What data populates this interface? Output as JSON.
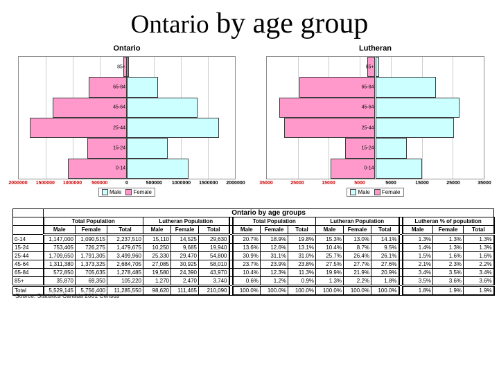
{
  "slide_title": {
    "part1": "Ontario",
    "part2": " by age group"
  },
  "source_note": "Source: Statistics Canada 2001 Census",
  "colors": {
    "male": "#CCFFFF",
    "female": "#FF99CC",
    "negative_tick": "#CC0000",
    "positive_tick": "#000000",
    "gridline": "#CCCCCC"
  },
  "chart_data": [
    {
      "type": "bar",
      "subtype": "population_pyramid",
      "title": "Ontario",
      "categories": [
        "85+",
        "65-84",
        "45-64",
        "25-44",
        "15-24",
        "0-14"
      ],
      "series": [
        {
          "name": "Male",
          "side": "right",
          "values": [
            35870,
            572850,
            1311380,
            1709650,
            753405,
            1147000
          ]
        },
        {
          "name": "Female",
          "side": "left",
          "values": [
            69350,
            705635,
            1373325,
            1791305,
            726275,
            1090515
          ]
        }
      ],
      "xlim": [
        -2000000,
        2000000
      ],
      "xticks": [
        {
          "value": -2000000,
          "label": "2000000",
          "red": true
        },
        {
          "value": -1500000,
          "label": "1500000",
          "red": true
        },
        {
          "value": -1000000,
          "label": "1000000",
          "red": true
        },
        {
          "value": -500000,
          "label": "500000",
          "red": true
        },
        {
          "value": 0,
          "label": "0",
          "red": false
        },
        {
          "value": 500000,
          "label": "500000",
          "red": false
        },
        {
          "value": 1000000,
          "label": "1000000",
          "red": false
        },
        {
          "value": 1500000,
          "label": "1500000",
          "red": false
        },
        {
          "value": 2000000,
          "label": "2000000",
          "red": false
        }
      ],
      "legend": [
        "Male",
        "Female"
      ],
      "legend_position": "bottom",
      "grid": true
    },
    {
      "type": "bar",
      "subtype": "population_pyramid",
      "title": "Lutheran",
      "categories": [
        "85+",
        "65-84",
        "45-64",
        "25-44",
        "15-24",
        "0-14"
      ],
      "series": [
        {
          "name": "Male",
          "side": "right",
          "values": [
            1270,
            19580,
            27085,
            25330,
            10250,
            15110
          ]
        },
        {
          "name": "Female",
          "side": "left",
          "values": [
            2470,
            24390,
            30925,
            29470,
            9685,
            14525
          ]
        }
      ],
      "xlim": [
        -35000,
        35000
      ],
      "xticks": [
        {
          "value": -35000,
          "label": "35000",
          "red": true
        },
        {
          "value": -25000,
          "label": "25000",
          "red": true
        },
        {
          "value": -15000,
          "label": "15000",
          "red": true
        },
        {
          "value": -5000,
          "label": "5000",
          "red": true
        },
        {
          "value": 0,
          "label": "",
          "red": false
        },
        {
          "value": 5000,
          "label": "5000",
          "red": false
        },
        {
          "value": 15000,
          "label": "15000",
          "red": false
        },
        {
          "value": 25000,
          "label": "25000",
          "red": false
        },
        {
          "value": 35000,
          "label": "35000",
          "red": false
        }
      ],
      "legend": [
        "Male",
        "Female"
      ],
      "legend_position": "bottom",
      "grid": true
    }
  ],
  "table": {
    "title": "Ontario by age groups",
    "row_labels": [
      "0-14",
      "15-24",
      "25-44",
      "45-64",
      "65-84",
      "85+",
      "Total"
    ],
    "groups": [
      {
        "label": "Total Population",
        "cols": [
          "Male",
          "Female",
          "Total"
        ],
        "rows": [
          [
            "1,147,000",
            "1,090,515",
            "2,237,510"
          ],
          [
            "753,405",
            "726,275",
            "1,479,675"
          ],
          [
            "1,709,650",
            "1,791,305",
            "3,499,960"
          ],
          [
            "1,311,380",
            "1,373,325",
            "2,684,705"
          ],
          [
            "572,850",
            "705,635",
            "1,278,485"
          ],
          [
            "35,870",
            "69,350",
            "105,220"
          ],
          [
            "5,529,145",
            "5,756,400",
            "11,285,550"
          ]
        ]
      },
      {
        "label": "Lutheran Population",
        "cols": [
          "Male",
          "Female",
          "Total"
        ],
        "rows": [
          [
            "15,110",
            "14,525",
            "29,630"
          ],
          [
            "10,250",
            "9,685",
            "19,940"
          ],
          [
            "25,330",
            "29,470",
            "54,800"
          ],
          [
            "27,085",
            "30,925",
            "58,010"
          ],
          [
            "19,580",
            "24,390",
            "43,970"
          ],
          [
            "1,270",
            "2,470",
            "3,740"
          ],
          [
            "98,620",
            "111,465",
            "210,090"
          ]
        ]
      },
      {
        "label": "Total Population",
        "cols": [
          "Male",
          "Female",
          "Total"
        ],
        "rows": [
          [
            "20.7%",
            "18.9%",
            "19.8%"
          ],
          [
            "13.6%",
            "12.6%",
            "13.1%"
          ],
          [
            "30.9%",
            "31.1%",
            "31.0%"
          ],
          [
            "23.7%",
            "23.9%",
            "23.8%"
          ],
          [
            "10.4%",
            "12.3%",
            "11.3%"
          ],
          [
            "0.6%",
            "1.2%",
            "0.9%"
          ],
          [
            "100.0%",
            "100.0%",
            "100.0%"
          ]
        ]
      },
      {
        "label": "Lutheran Population",
        "cols": [
          "Male",
          "Female",
          "Total"
        ],
        "rows": [
          [
            "15.3%",
            "13.0%",
            "14.1%"
          ],
          [
            "10.4%",
            "8.7%",
            "9.5%"
          ],
          [
            "25.7%",
            "26.4%",
            "26.1%"
          ],
          [
            "27.5%",
            "27.7%",
            "27.6%"
          ],
          [
            "19.9%",
            "21.9%",
            "20.9%"
          ],
          [
            "1.3%",
            "2.2%",
            "1.8%"
          ],
          [
            "100.0%",
            "100.0%",
            "100.0%"
          ]
        ]
      },
      {
        "label": "Lutheran % of population",
        "cols": [
          "Male",
          "Female",
          "Total"
        ],
        "rows": [
          [
            "1.3%",
            "1.3%",
            "1.3%"
          ],
          [
            "1.4%",
            "1.3%",
            "1.3%"
          ],
          [
            "1.5%",
            "1.6%",
            "1.6%"
          ],
          [
            "2.1%",
            "2.3%",
            "2.2%"
          ],
          [
            "3.4%",
            "3.5%",
            "3.4%"
          ],
          [
            "3.5%",
            "3.6%",
            "3.6%"
          ],
          [
            "1.8%",
            "1.9%",
            "1.9%"
          ]
        ]
      }
    ],
    "blocks": [
      [
        0,
        1
      ],
      [
        2,
        3
      ],
      [
        4
      ]
    ]
  }
}
